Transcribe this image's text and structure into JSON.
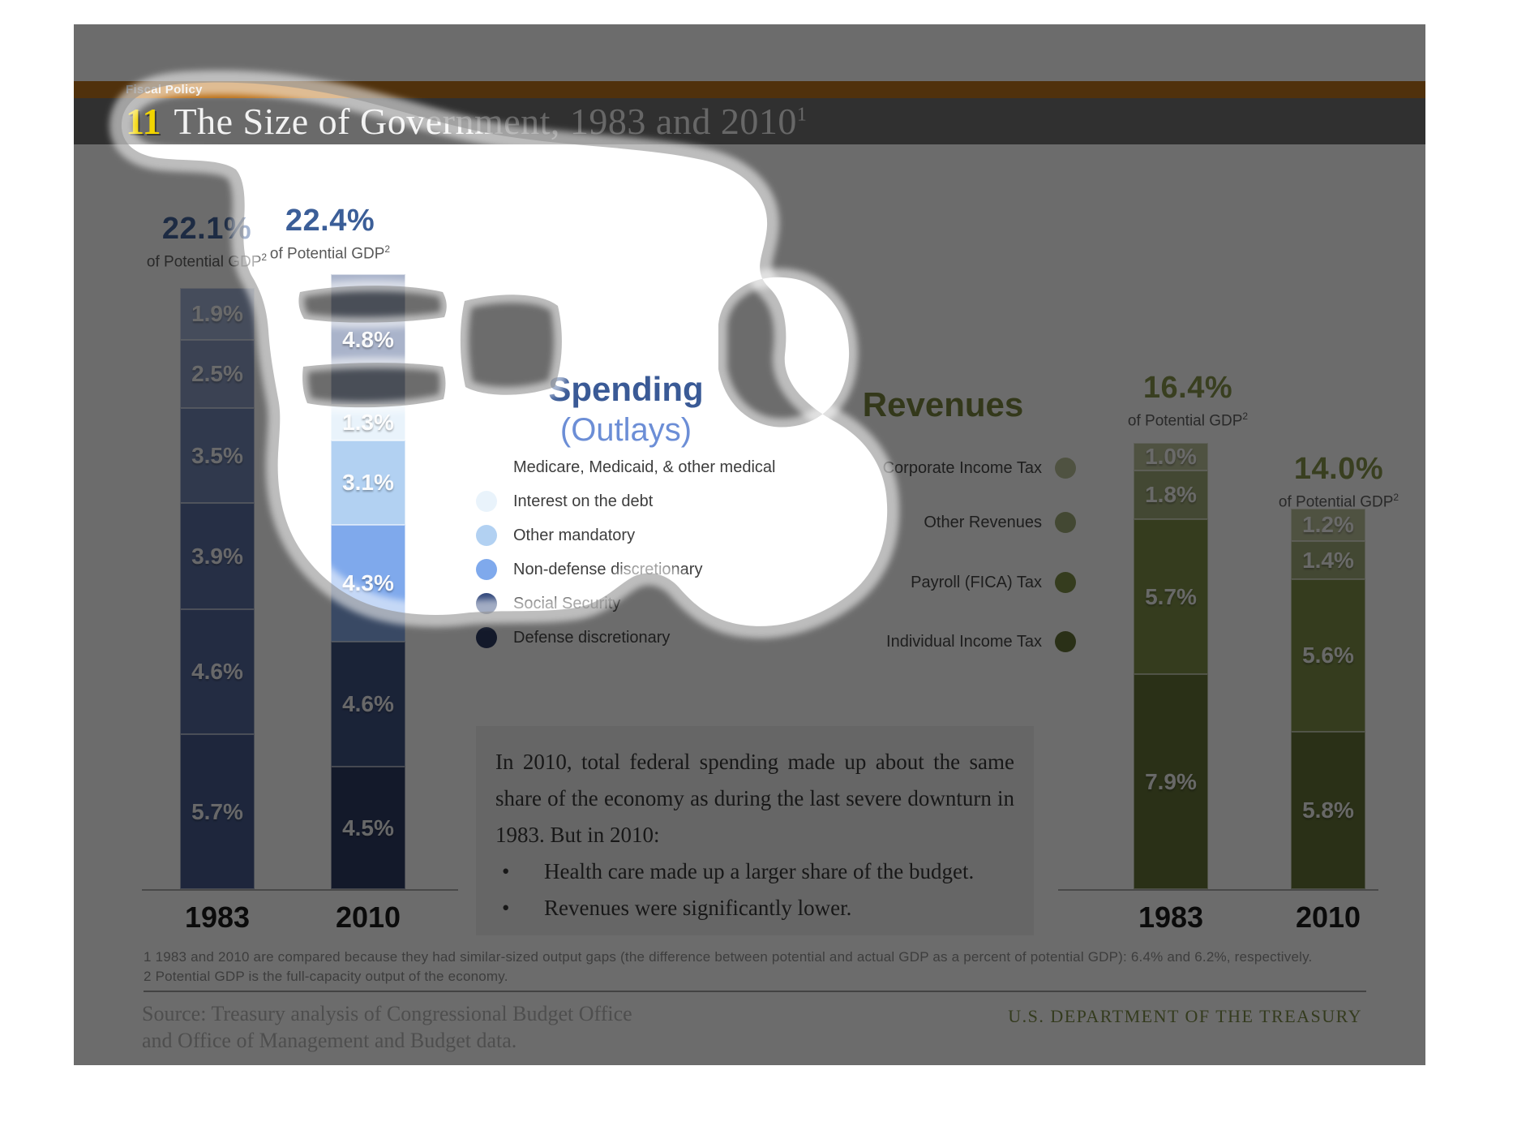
{
  "header": {
    "tab": "Fiscal Policy",
    "slide_number": "11",
    "title": "The Size of Government, 1983 and 2010",
    "title_sup": "1"
  },
  "spending": {
    "title": "Spending",
    "subtitle": "(Outlays)",
    "legend": [
      {
        "label": "Medicare, Medicaid, & other medical",
        "color": "#ffffff"
      },
      {
        "label": "Interest on the debt",
        "color": "#e9f3fb"
      },
      {
        "label": "Other mandatory",
        "color": "#b2d1f2"
      },
      {
        "label": "Non-defense discretionary",
        "color": "#7fa9ec"
      },
      {
        "label": "Social Security",
        "color": "#33497c"
      },
      {
        "label": "Defense discretionary",
        "color": "#22305a"
      }
    ],
    "bars": [
      {
        "year": "1983",
        "headline": "22.1%",
        "subhead": "of Potential GDP",
        "subhead_sup": "2",
        "segments": [
          {
            "value": 1.9,
            "label": "1.9%",
            "color": "#9fb0d4"
          },
          {
            "value": 2.5,
            "label": "2.5%",
            "color": "#8496c0"
          },
          {
            "value": 3.5,
            "label": "3.5%",
            "color": "#6a80b2"
          },
          {
            "value": 3.9,
            "label": "3.9%",
            "color": "#52689e"
          },
          {
            "value": 4.6,
            "label": "4.6%",
            "color": "#4a5f96"
          },
          {
            "value": 5.7,
            "label": "5.7%",
            "color": "#3c5288"
          }
        ]
      },
      {
        "year": "2010",
        "headline": "22.4%",
        "subhead": "of Potential GDP",
        "subhead_sup": "2",
        "segments": [
          {
            "value": 4.8,
            "label": "4.8%",
            "color": "#a9b3ca"
          },
          {
            "value": 1.3,
            "label": "1.3%",
            "color": "#e9f3fb"
          },
          {
            "value": 3.1,
            "label": "3.1%",
            "color": "#b2d1f2"
          },
          {
            "value": 4.3,
            "label": "4.3%",
            "color": "#7fa9ec"
          },
          {
            "value": 4.6,
            "label": "4.6%",
            "color": "#33497c"
          },
          {
            "value": 4.5,
            "label": "4.5%",
            "color": "#22305a"
          }
        ]
      }
    ]
  },
  "revenues": {
    "title": "Revenues",
    "legend": [
      {
        "label": "Corporate Income Tax",
        "color": "#b7bd95"
      },
      {
        "label": "Other Revenues",
        "color": "#9aa671"
      },
      {
        "label": "Payroll (FICA) Tax",
        "color": "#75873d"
      },
      {
        "label": "Individual Income Tax",
        "color": "#5a692c"
      }
    ],
    "bars": [
      {
        "year": "1983",
        "headline": "16.4%",
        "subhead": "of Potential GDP",
        "subhead_sup": "2",
        "segments": [
          {
            "value": 1.0,
            "label": "1.0%",
            "color": "#b7bd95"
          },
          {
            "value": 1.8,
            "label": "1.8%",
            "color": "#9aa671"
          },
          {
            "value": 5.7,
            "label": "5.7%",
            "color": "#75873d"
          },
          {
            "value": 7.9,
            "label": "7.9%",
            "color": "#5a692c"
          }
        ]
      },
      {
        "year": "2010",
        "headline": "14.0%",
        "subhead": "of Potential GDP",
        "subhead_sup": "2",
        "segments": [
          {
            "value": 1.2,
            "label": "1.2%",
            "color": "#b7bd95"
          },
          {
            "value": 1.4,
            "label": "1.4%",
            "color": "#9aa671"
          },
          {
            "value": 5.6,
            "label": "5.6%",
            "color": "#75873d"
          },
          {
            "value": 5.8,
            "label": "5.8%",
            "color": "#5a692c"
          }
        ]
      }
    ]
  },
  "note": {
    "paragraph": "In 2010, total federal spending made up about the same share of the economy as during the last severe downturn in 1983. But in 2010:",
    "bullet_glyph": "•",
    "bullets": [
      "Health care made up a larger share of the budget.",
      "Revenues were significantly lower."
    ]
  },
  "footnotes": [
    "1 1983 and 2010 are compared because they had similar-sized output gaps (the difference between potential and actual GDP as a percent of potential GDP): 6.4% and 6.2%, respectively.",
    "2 Potential GDP is the full-capacity output of the economy."
  ],
  "source_lines": [
    "Source: Treasury analysis of Congressional Budget Office",
    "and Office of Management and Budget data."
  ],
  "org": "U.S. DEPARTMENT OF THE TREASURY",
  "chart_data": [
    {
      "type": "bar",
      "stacked": true,
      "title": "Spending (Outlays)",
      "categories": [
        "1983",
        "2010"
      ],
      "totals_pct_of_potential_gdp": [
        22.1,
        22.4
      ],
      "series": [
        {
          "name": "Medicare, Medicaid, & other medical",
          "values": [
            1.9,
            4.8
          ]
        },
        {
          "name": "Interest on the debt",
          "values": [
            2.5,
            1.3
          ]
        },
        {
          "name": "Other mandatory",
          "values": [
            3.5,
            3.1
          ]
        },
        {
          "name": "Non-defense discretionary",
          "values": [
            3.9,
            4.3
          ]
        },
        {
          "name": "Social Security",
          "values": [
            4.6,
            4.6
          ]
        },
        {
          "name": "Defense discretionary",
          "values": [
            5.7,
            4.5
          ]
        }
      ],
      "ylabel": "% of Potential GDP",
      "legend_position": "right-of-chart",
      "grid": false
    },
    {
      "type": "bar",
      "stacked": true,
      "title": "Revenues",
      "categories": [
        "1983",
        "2010"
      ],
      "totals_pct_of_potential_gdp": [
        16.4,
        14.0
      ],
      "series": [
        {
          "name": "Corporate Income Tax",
          "values": [
            1.0,
            1.2
          ]
        },
        {
          "name": "Other Revenues",
          "values": [
            1.8,
            1.4
          ]
        },
        {
          "name": "Payroll (FICA) Tax",
          "values": [
            5.7,
            5.6
          ]
        },
        {
          "name": "Individual Income Tax",
          "values": [
            7.9,
            5.8
          ]
        }
      ],
      "ylabel": "% of Potential GDP",
      "legend_position": "left-of-chart",
      "grid": false
    }
  ]
}
